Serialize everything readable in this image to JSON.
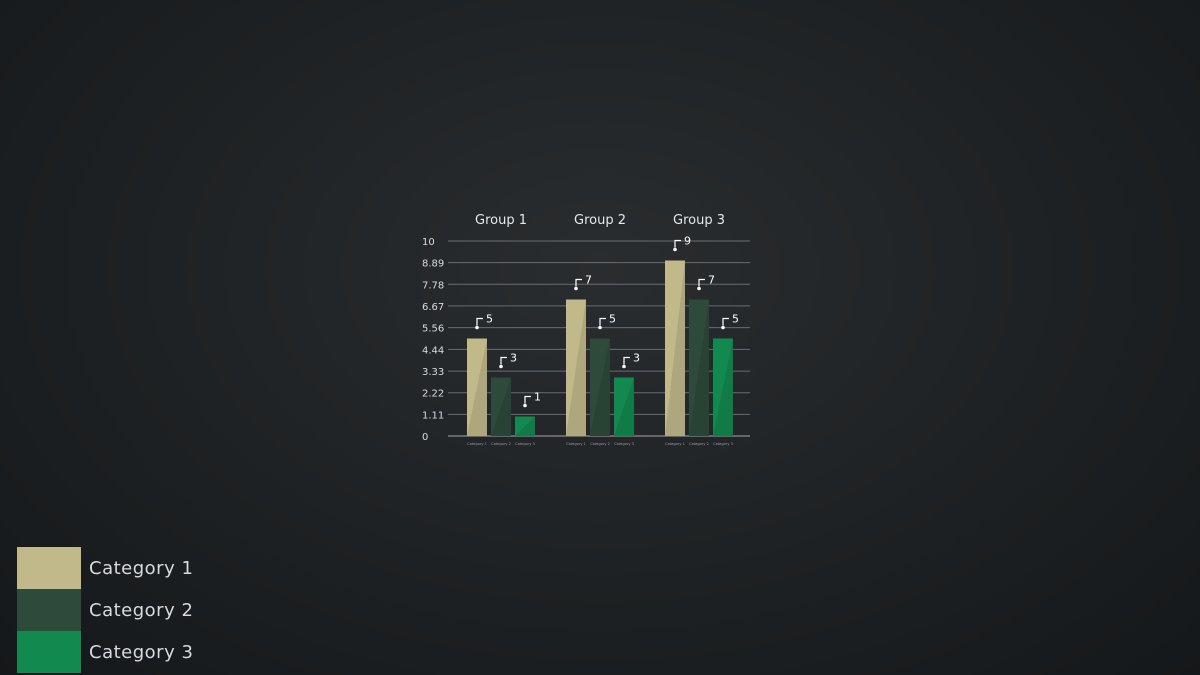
{
  "chart_data": {
    "type": "bar",
    "categories": [
      "Group 1",
      "Group 2",
      "Group 3"
    ],
    "series": [
      {
        "name": "Category 1",
        "values": [
          5,
          7,
          9
        ],
        "color": "#c1b98a"
      },
      {
        "name": "Category 2",
        "values": [
          3,
          5,
          7
        ],
        "color": "#2d4a3a"
      },
      {
        "name": "Category 3",
        "values": [
          1,
          3,
          5
        ],
        "color": "#12894f"
      }
    ],
    "bar_labels": [
      [
        "Category 1",
        "Category 2",
        "Category 3"
      ],
      [
        "Category 1",
        "Category 2",
        "Category 3"
      ],
      [
        "Category 1",
        "Category 2",
        "Category 3"
      ]
    ],
    "y_ticks": [
      "0",
      "1.11",
      "2.22",
      "3.33",
      "4.44",
      "5.56",
      "6.67",
      "7.78",
      "8.89",
      "10"
    ],
    "ylim": [
      0,
      10
    ],
    "grid": true,
    "legend_position": "bottom-left"
  },
  "legend": {
    "items": [
      {
        "label": "Category 1",
        "color": "#c1b98a"
      },
      {
        "label": "Category 2",
        "color": "#2d4a3a"
      },
      {
        "label": "Category 3",
        "color": "#12894f"
      }
    ]
  }
}
